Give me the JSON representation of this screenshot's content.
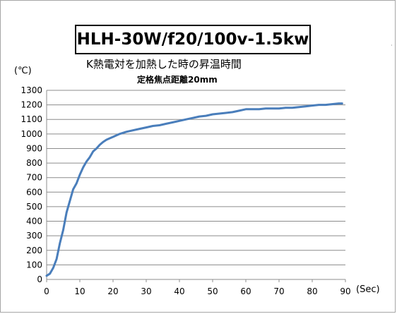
{
  "chart_data": {
    "type": "line",
    "title": "HLH-30W/f20/100v-1.5kw",
    "subtitle": "K熱電対を加熱した時の昇温時間",
    "subtitle2": "定格焦点距離20mm",
    "ylabel": "(℃)",
    "xlabel": "(Sec)",
    "xlim": [
      0,
      90
    ],
    "ylim": [
      0,
      1300
    ],
    "xticks": [
      "0",
      "10",
      "20",
      "30",
      "40",
      "50",
      "60",
      "70",
      "80",
      "90"
    ],
    "yticks": [
      "0",
      "100",
      "200",
      "300",
      "400",
      "500",
      "600",
      "700",
      "800",
      "900",
      "1000",
      "1100",
      "1200",
      "1300"
    ],
    "grid": "horizontal",
    "series": [
      {
        "color": "#4a7ebb",
        "x": [
          0,
          1,
          2,
          3,
          4,
          5,
          6,
          7,
          8,
          9,
          10,
          11,
          12,
          13,
          14,
          15,
          16,
          17,
          18,
          19,
          20,
          22,
          24,
          26,
          28,
          30,
          32,
          34,
          36,
          38,
          40,
          42,
          44,
          46,
          48,
          50,
          52,
          54,
          56,
          58,
          60,
          62,
          64,
          66,
          68,
          70,
          72,
          74,
          76,
          78,
          80,
          82,
          84,
          86,
          88,
          89
        ],
        "y": [
          25,
          40,
          80,
          140,
          250,
          340,
          460,
          540,
          620,
          660,
          720,
          770,
          810,
          840,
          880,
          900,
          925,
          945,
          960,
          970,
          980,
          1000,
          1015,
          1025,
          1035,
          1045,
          1055,
          1060,
          1070,
          1080,
          1090,
          1100,
          1110,
          1120,
          1125,
          1135,
          1140,
          1145,
          1150,
          1160,
          1170,
          1170,
          1170,
          1175,
          1175,
          1175,
          1180,
          1180,
          1185,
          1190,
          1195,
          1200,
          1200,
          1205,
          1210,
          1210
        ]
      }
    ]
  }
}
